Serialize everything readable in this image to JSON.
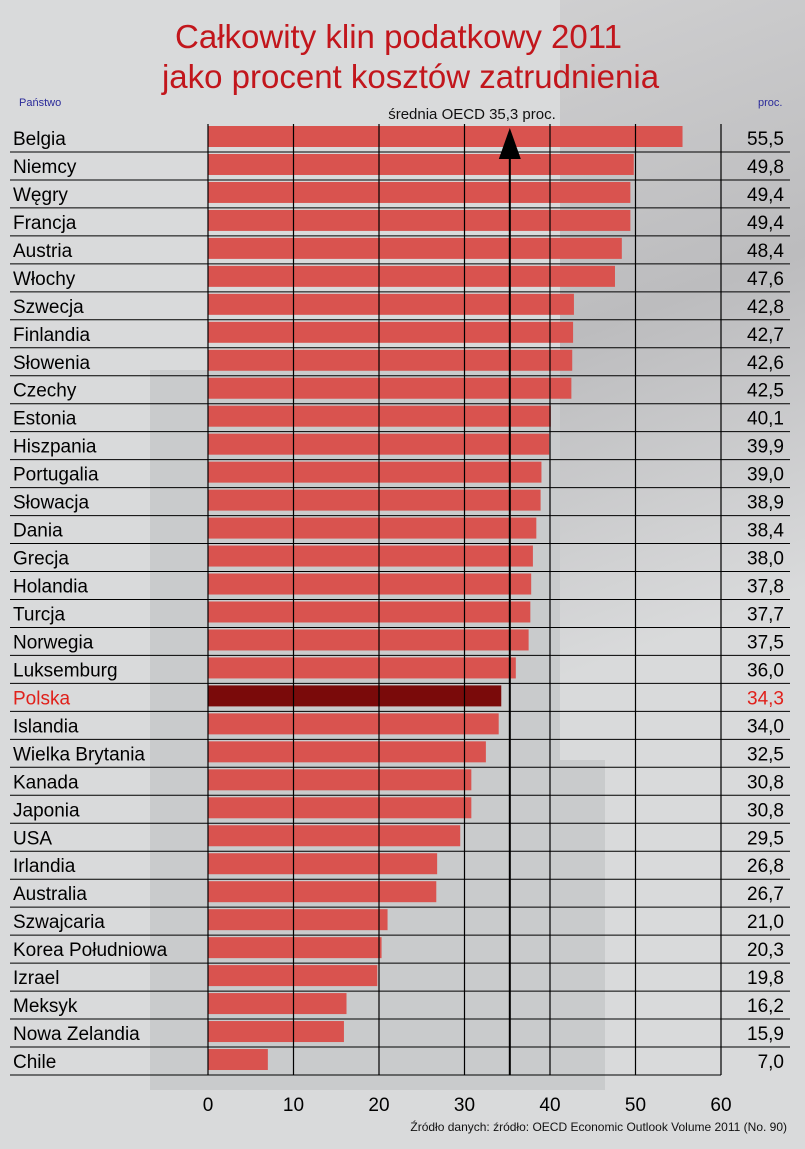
{
  "header": {
    "title_line1": "Całkowity klin podatkowy 2011",
    "title_line2": "jako procent kosztów zatrudnienia",
    "left_label": "Państwo",
    "right_label": "proc.",
    "average_label": "średnia OECD  35,3 proc."
  },
  "source": "Źródło danych: źródło: OECD Economic Outlook Volume 2011 (No. 90)",
  "colors": {
    "bar": "#d9534f",
    "highlight_bar": "#7a0a0a",
    "highlight_text": "#e0201a",
    "title": "#c2161c"
  },
  "chart_data": {
    "type": "bar",
    "orientation": "horizontal",
    "title": "Całkowity klin podatkowy 2011 jako procent kosztów zatrudnienia",
    "xlabel": "",
    "ylabel": "Państwo",
    "xlim": [
      0,
      60
    ],
    "xticks": [
      "0",
      "10",
      "20",
      "30",
      "40",
      "50",
      "60"
    ],
    "grid": true,
    "average": {
      "value": 35.3,
      "label": "średnia OECD  35,3 proc."
    },
    "highlight": "Polska",
    "categories": [
      "Belgia",
      "Niemcy",
      "Węgry",
      "Francja",
      "Austria",
      "Włochy",
      "Szwecja",
      "Finlandia",
      "Słowenia",
      "Czechy",
      "Estonia",
      "Hiszpania",
      "Portugalia",
      "Słowacja",
      "Dania",
      "Grecja",
      "Holandia",
      "Turcja",
      "Norwegia",
      "Luksemburg",
      "Polska",
      "Islandia",
      "Wielka Brytania",
      "Kanada",
      "Japonia",
      "USA",
      "Irlandia",
      "Australia",
      "Szwajcaria",
      "Korea Południowa",
      "Izrael",
      "Meksyk",
      "Nowa Zelandia",
      "Chile"
    ],
    "values": [
      55.5,
      49.8,
      49.4,
      49.4,
      48.4,
      47.6,
      42.8,
      42.7,
      42.6,
      42.5,
      40.1,
      39.9,
      39.0,
      38.9,
      38.4,
      38.0,
      37.8,
      37.7,
      37.5,
      36.0,
      34.3,
      34.0,
      32.5,
      30.8,
      30.8,
      29.5,
      26.8,
      26.7,
      21.0,
      20.3,
      19.8,
      16.2,
      15.9,
      7.0
    ],
    "value_labels": [
      "55,5",
      "49,8",
      "49,4",
      "49,4",
      "48,4",
      "47,6",
      "42,8",
      "42,7",
      "42,6",
      "42,5",
      "40,1",
      "39,9",
      "39,0",
      "38,9",
      "38,4",
      "38,0",
      "37,8",
      "37,7",
      "37,5",
      "36,0",
      "34,3",
      "34,0",
      "32,5",
      "30,8",
      "30,8",
      "29,5",
      "26,8",
      "26,7",
      "21,0",
      "20,3",
      "19,8",
      "16,2",
      "15,9",
      "7,0"
    ]
  }
}
